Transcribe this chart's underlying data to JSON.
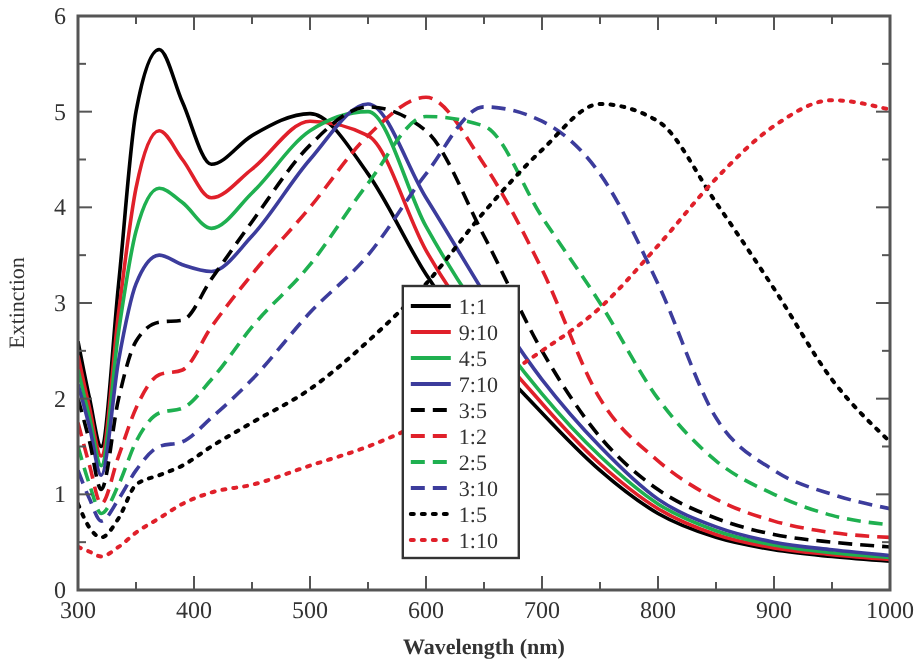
{
  "chart_data": {
    "type": "line",
    "xlabel": "Wavelength (nm)",
    "ylabel": "Extinction",
    "x": [
      300,
      310,
      320,
      335,
      350,
      370,
      390,
      415,
      450,
      500,
      550,
      600,
      650,
      700,
      750,
      800,
      850,
      900,
      950,
      1000
    ],
    "xlim": [
      300,
      1000
    ],
    "xticks": [
      300,
      {
        "value": 350,
        "label": null
      },
      400,
      {
        "value": 450,
        "label": null
      },
      500,
      {
        "value": 550,
        "label": null
      },
      600,
      {
        "value": 650,
        "label": null
      },
      700,
      {
        "value": 750,
        "label": null
      },
      800,
      {
        "value": 850,
        "label": null
      },
      900,
      {
        "value": 950,
        "label": null
      },
      1000
    ],
    "ylim": [
      0,
      6
    ],
    "yticks": [
      0,
      {
        "value": 0.5,
        "label": null
      },
      1,
      {
        "value": 1.5,
        "label": null
      },
      2,
      {
        "value": 2.5,
        "label": null
      },
      3,
      {
        "value": 3.5,
        "label": null
      },
      4,
      {
        "value": 4.5,
        "label": null
      },
      5,
      {
        "value": 5.5,
        "label": null
      },
      6
    ],
    "grid": false,
    "legend": "bottom",
    "marker": "none",
    "series": [
      {
        "name": "1:1",
        "color": "#000000",
        "line_style": "solid",
        "values": [
          2.6,
          2.0,
          1.5,
          3.2,
          5.0,
          5.65,
          5.1,
          4.45,
          4.75,
          4.98,
          4.35,
          3.3,
          null,
          1.85,
          1.25,
          0.8,
          0.55,
          0.42,
          0.35,
          0.3
        ]
      },
      {
        "name": "9:10",
        "color": "#e0202a",
        "line_style": "solid",
        "values": [
          2.45,
          1.9,
          1.4,
          2.9,
          4.2,
          4.8,
          4.5,
          4.1,
          4.4,
          4.9,
          4.75,
          3.55,
          null,
          1.95,
          1.32,
          0.85,
          0.58,
          0.44,
          0.37,
          0.32
        ]
      },
      {
        "name": "4:5",
        "color": "#1fb050",
        "line_style": "solid",
        "values": [
          2.3,
          1.8,
          1.3,
          2.7,
          3.75,
          4.2,
          4.05,
          3.78,
          4.15,
          4.8,
          5.0,
          3.8,
          null,
          2.05,
          1.4,
          0.9,
          0.62,
          0.47,
          0.39,
          0.34
        ]
      },
      {
        "name": "7:10",
        "color": "#3c3c9c",
        "line_style": "solid",
        "values": [
          2.15,
          1.7,
          1.2,
          2.4,
          3.2,
          3.5,
          3.4,
          3.33,
          3.7,
          4.5,
          5.08,
          4.1,
          null,
          2.2,
          1.5,
          0.95,
          0.66,
          0.5,
          0.42,
          0.36
        ]
      },
      {
        "name": "3:5",
        "color": "#000000",
        "line_style": "dashed",
        "values": [
          2.0,
          1.55,
          1.05,
          2.0,
          2.6,
          2.8,
          2.82,
          3.25,
          3.85,
          4.65,
          5.05,
          4.8,
          3.7,
          2.5,
          1.6,
          1.05,
          0.75,
          0.58,
          0.5,
          0.45
        ]
      },
      {
        "name": "1:2",
        "color": "#e0202a",
        "line_style": "dashed",
        "values": [
          1.75,
          1.3,
          0.9,
          1.4,
          1.9,
          2.25,
          2.3,
          2.75,
          3.3,
          4.0,
          4.75,
          5.15,
          4.45,
          3.35,
          2.0,
          1.35,
          0.95,
          0.72,
          0.6,
          0.55
        ]
      },
      {
        "name": "2:5",
        "color": "#1fb050",
        "line_style": "dashed",
        "values": [
          1.5,
          1.1,
          0.8,
          1.1,
          1.55,
          1.85,
          1.9,
          2.2,
          2.75,
          3.4,
          4.25,
          4.95,
          4.85,
          3.9,
          3.0,
          2.0,
          1.35,
          1.0,
          0.78,
          0.68
        ]
      },
      {
        "name": "3:10",
        "color": "#3c3c9c",
        "line_style": "dashed",
        "values": [
          1.25,
          0.95,
          0.72,
          0.95,
          1.25,
          1.5,
          1.55,
          1.8,
          2.2,
          2.9,
          3.5,
          4.35,
          5.05,
          4.9,
          4.35,
          3.2,
          1.8,
          1.25,
          1.0,
          0.85
        ]
      },
      {
        "name": "1:5",
        "color": "#000000",
        "line_style": "dotted",
        "values": [
          0.9,
          0.65,
          0.55,
          0.75,
          1.1,
          1.2,
          1.3,
          1.5,
          1.75,
          2.1,
          2.6,
          3.2,
          3.95,
          4.6,
          5.08,
          4.9,
          4.05,
          3.15,
          2.2,
          1.55
        ]
      },
      {
        "name": "1:10",
        "color": "#e0202a",
        "line_style": "dotted",
        "values": [
          0.45,
          0.4,
          0.35,
          0.45,
          0.6,
          0.75,
          0.9,
          1.02,
          1.1,
          1.3,
          1.5,
          null,
          null,
          2.5,
          2.95,
          3.6,
          4.3,
          4.85,
          5.12,
          5.02
        ]
      }
    ]
  }
}
